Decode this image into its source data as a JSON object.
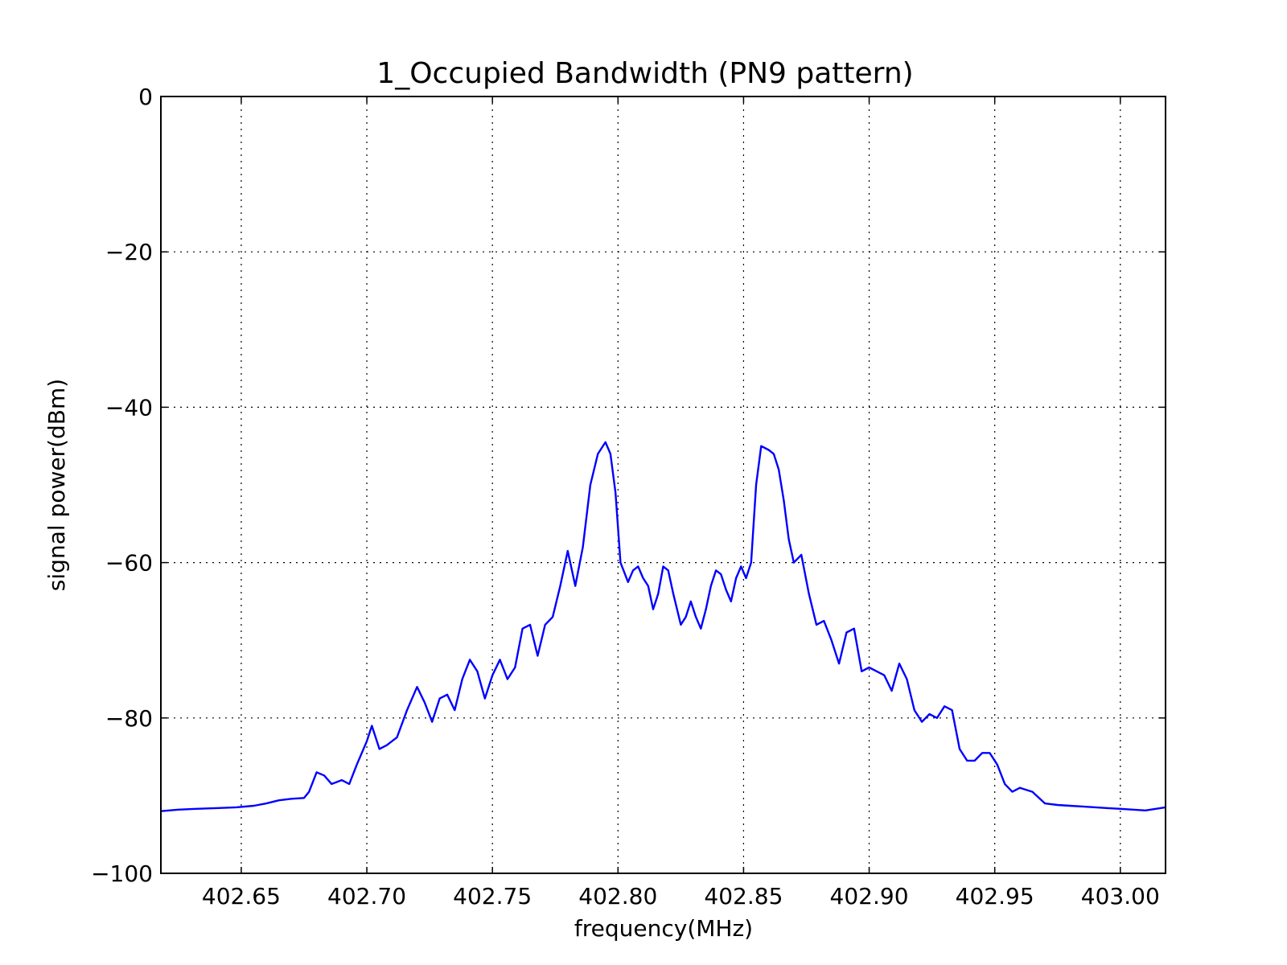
{
  "chart_data": {
    "type": "line",
    "title": "1_Occupied Bandwidth (PN9 pattern)",
    "xlabel": "frequency(MHz)",
    "ylabel": "signal power(dBm)",
    "xlim": [
      402.618,
      403.018
    ],
    "ylim": [
      -100,
      0
    ],
    "xticks": [
      402.65,
      402.7,
      402.75,
      402.8,
      402.85,
      402.9,
      402.95,
      403.0
    ],
    "xtick_labels": [
      "402.65",
      "402.70",
      "402.75",
      "402.80",
      "402.85",
      "402.90",
      "402.95",
      "403.00"
    ],
    "yticks": [
      0,
      -20,
      -40,
      -60,
      -80,
      -100
    ],
    "ytick_labels": [
      "0",
      "−20",
      "−40",
      "−60",
      "−80",
      "−100"
    ],
    "grid": true,
    "line_color": "#0000ff",
    "series": [
      {
        "x": [
          402.618,
          402.625,
          402.632,
          402.64,
          402.648,
          402.655,
          402.66,
          402.665,
          402.67,
          402.675,
          402.677,
          402.68,
          402.683,
          402.686,
          402.69,
          402.693,
          402.696,
          402.7,
          402.702,
          402.705,
          402.708,
          402.712,
          402.716,
          402.72,
          402.723,
          402.726,
          402.729,
          402.732,
          402.735,
          402.738,
          402.741,
          402.744,
          402.747,
          402.75,
          402.753,
          402.756,
          402.759,
          402.762,
          402.765,
          402.768,
          402.771,
          402.774,
          402.777,
          402.78,
          402.783,
          402.786,
          402.789,
          402.792,
          402.795,
          402.797,
          402.799,
          402.801,
          402.804,
          402.806,
          402.808,
          402.81,
          402.812,
          402.814,
          402.816,
          402.818,
          402.82,
          402.822,
          402.825,
          402.827,
          402.829,
          402.831,
          402.833,
          402.835,
          402.837,
          402.839,
          402.841,
          402.843,
          402.845,
          402.847,
          402.849,
          402.851,
          402.853,
          402.855,
          402.857,
          402.86,
          402.862,
          402.864,
          402.866,
          402.868,
          402.87,
          402.873,
          402.876,
          402.879,
          402.882,
          402.885,
          402.888,
          402.891,
          402.894,
          402.897,
          402.9,
          402.903,
          402.906,
          402.909,
          402.912,
          402.915,
          402.918,
          402.921,
          402.924,
          402.927,
          402.93,
          402.933,
          402.936,
          402.939,
          402.942,
          402.945,
          402.948,
          402.951,
          402.954,
          402.957,
          402.96,
          402.965,
          402.97,
          402.975,
          402.98,
          402.985,
          402.99,
          402.995,
          403.0,
          403.005,
          403.01,
          403.018
        ],
        "y": [
          -92,
          -91.8,
          -91.7,
          -91.6,
          -91.5,
          -91.3,
          -91.0,
          -90.6,
          -90.4,
          -90.3,
          -89.5,
          -87.0,
          -87.4,
          -88.5,
          -88.0,
          -88.5,
          -86.0,
          -83.0,
          -81.0,
          -84.0,
          -83.5,
          -82.5,
          -79.0,
          -76.0,
          -78.0,
          -80.5,
          -77.5,
          -77.0,
          -79.0,
          -75.0,
          -72.5,
          -74.0,
          -77.5,
          -74.5,
          -72.5,
          -75.0,
          -73.5,
          -68.5,
          -68.0,
          -72.0,
          -68.0,
          -67.0,
          -63.0,
          -58.5,
          -63.0,
          -58.0,
          -50.0,
          -46.0,
          -44.5,
          -46.0,
          -51.0,
          -60.0,
          -62.5,
          -61.0,
          -60.5,
          -62.0,
          -63.0,
          -66.0,
          -64.0,
          -60.5,
          -61.0,
          -64.0,
          -68.0,
          -67.0,
          -65.0,
          -67.0,
          -68.5,
          -66.0,
          -63.0,
          -61.0,
          -61.5,
          -63.5,
          -65.0,
          -62.0,
          -60.5,
          -62.0,
          -60.0,
          -50.0,
          -45.0,
          -45.5,
          -46.0,
          -48.0,
          -52.0,
          -57.0,
          -60.0,
          -59.0,
          -64.0,
          -68.0,
          -67.5,
          -70.0,
          -73.0,
          -69.0,
          -68.5,
          -74.0,
          -73.5,
          -74.0,
          -74.5,
          -76.5,
          -73.0,
          -75.0,
          -79.0,
          -80.5,
          -79.5,
          -80.0,
          -78.5,
          -79.0,
          -84.0,
          -85.5,
          -85.5,
          -84.5,
          -84.5,
          -86.0,
          -88.5,
          -89.5,
          -89.0,
          -89.5,
          -91.0,
          -91.2,
          -91.3,
          -91.4,
          -91.5,
          -91.6,
          -91.7,
          -91.8,
          -91.9,
          -91.5
        ]
      }
    ]
  }
}
